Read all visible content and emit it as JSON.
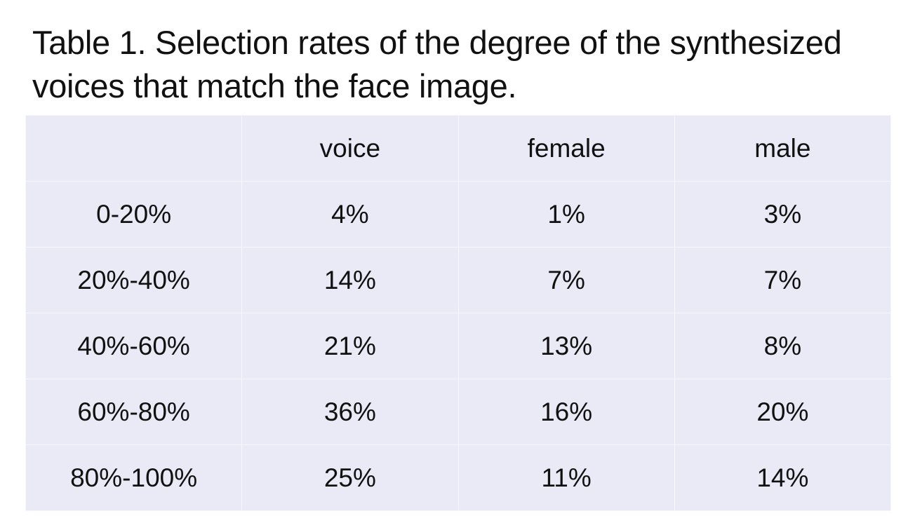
{
  "caption": {
    "line1": "Table 1. Selection rates of the degree of the synthesized",
    "line2": "voices that match the face image."
  },
  "table": {
    "columns": [
      "",
      "voice",
      "female",
      "male"
    ],
    "rows": [
      [
        "0-20%",
        "4%",
        "1%",
        "3%"
      ],
      [
        "20%-40%",
        "14%",
        "7%",
        "7%"
      ],
      [
        "40%-60%",
        "21%",
        "13%",
        "8%"
      ],
      [
        "60%-80%",
        "36%",
        "16%",
        "20%"
      ],
      [
        "80%-100%",
        "25%",
        "11%",
        "14%"
      ]
    ]
  },
  "colors": {
    "cell_background": "#e9eaf5",
    "cell_border": "#f6f6fb",
    "text": "#111111"
  }
}
